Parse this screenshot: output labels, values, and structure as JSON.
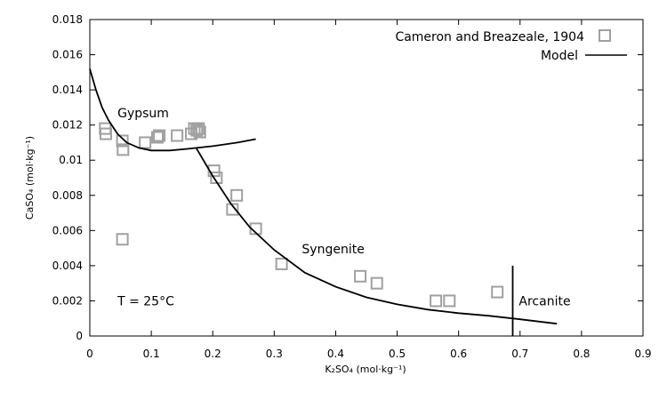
{
  "chart_data": {
    "type": "scatter",
    "title": "",
    "xlabel": "K₂SO₄ (mol·kg⁻¹)",
    "ylabel": "CaSO₄ (mol·kg⁻¹)",
    "xlim": [
      0,
      0.9
    ],
    "ylim": [
      0,
      0.018
    ],
    "x_ticks": [
      "0",
      "0.1",
      "0.2",
      "0.3",
      "0.4",
      "0.5",
      "0.6",
      "0.7",
      "0.8",
      "0.9"
    ],
    "y_ticks": [
      "0",
      "0.002",
      "0.004",
      "0.006",
      "0.008",
      "0.01",
      "0.012",
      "0.014",
      "0.016",
      "0.018"
    ],
    "grid": false,
    "legend_position": "top-right",
    "series": [
      {
        "name": "Cameron and Breazeale, 1904",
        "kind": "markers",
        "marker": "open-square",
        "color": "#a0a0a0",
        "points": [
          [
            0.025,
            0.0118
          ],
          [
            0.026,
            0.0115
          ],
          [
            0.053,
            0.0111
          ],
          [
            0.054,
            0.0106
          ],
          [
            0.053,
            0.0055
          ],
          [
            0.09,
            0.011
          ],
          [
            0.11,
            0.0113
          ],
          [
            0.113,
            0.0114
          ],
          [
            0.142,
            0.0114
          ],
          [
            0.165,
            0.0115
          ],
          [
            0.17,
            0.0118
          ],
          [
            0.174,
            0.0117
          ],
          [
            0.177,
            0.0118
          ],
          [
            0.179,
            0.0116
          ],
          [
            0.202,
            0.0094
          ],
          [
            0.206,
            0.009
          ],
          [
            0.239,
            0.008
          ],
          [
            0.232,
            0.0072
          ],
          [
            0.27,
            0.0061
          ],
          [
            0.312,
            0.0041
          ],
          [
            0.44,
            0.0034
          ],
          [
            0.467,
            0.003
          ],
          [
            0.563,
            0.002
          ],
          [
            0.585,
            0.002
          ],
          [
            0.663,
            0.0025
          ]
        ]
      },
      {
        "name": "Model",
        "kind": "line",
        "color": "#000000",
        "segments": [
          [
            [
              0.0,
              0.0152
            ],
            [
              0.01,
              0.014
            ],
            [
              0.02,
              0.013
            ],
            [
              0.03,
              0.0123
            ],
            [
              0.045,
              0.0115
            ],
            [
              0.06,
              0.011
            ],
            [
              0.08,
              0.0107
            ],
            [
              0.1,
              0.01055
            ],
            [
              0.13,
              0.01055
            ],
            [
              0.16,
              0.01065
            ],
            [
              0.2,
              0.0108
            ],
            [
              0.24,
              0.011
            ],
            [
              0.27,
              0.0112
            ]
          ],
          [
            [
              0.173,
              0.0107
            ],
            [
              0.2,
              0.0091
            ],
            [
              0.23,
              0.0075
            ],
            [
              0.26,
              0.0062
            ],
            [
              0.3,
              0.0049
            ],
            [
              0.35,
              0.0036
            ],
            [
              0.4,
              0.0028
            ],
            [
              0.45,
              0.0022
            ],
            [
              0.5,
              0.0018
            ],
            [
              0.55,
              0.0015
            ],
            [
              0.6,
              0.0013
            ],
            [
              0.65,
              0.00115
            ],
            [
              0.7,
              0.00095
            ],
            [
              0.76,
              0.0007
            ]
          ],
          [
            [
              0.688,
              0.004
            ],
            [
              0.688,
              0.0
            ]
          ]
        ]
      }
    ],
    "annotations": [
      {
        "text": "Gypsum",
        "x": 0.045,
        "y": 0.01245
      },
      {
        "text": "Syngenite",
        "x": 0.345,
        "y": 0.0047
      },
      {
        "text": "Arcanite",
        "x": 0.698,
        "y": 0.00175
      },
      {
        "text": "T = 25°C",
        "x": 0.045,
        "y": 0.00175
      }
    ]
  }
}
